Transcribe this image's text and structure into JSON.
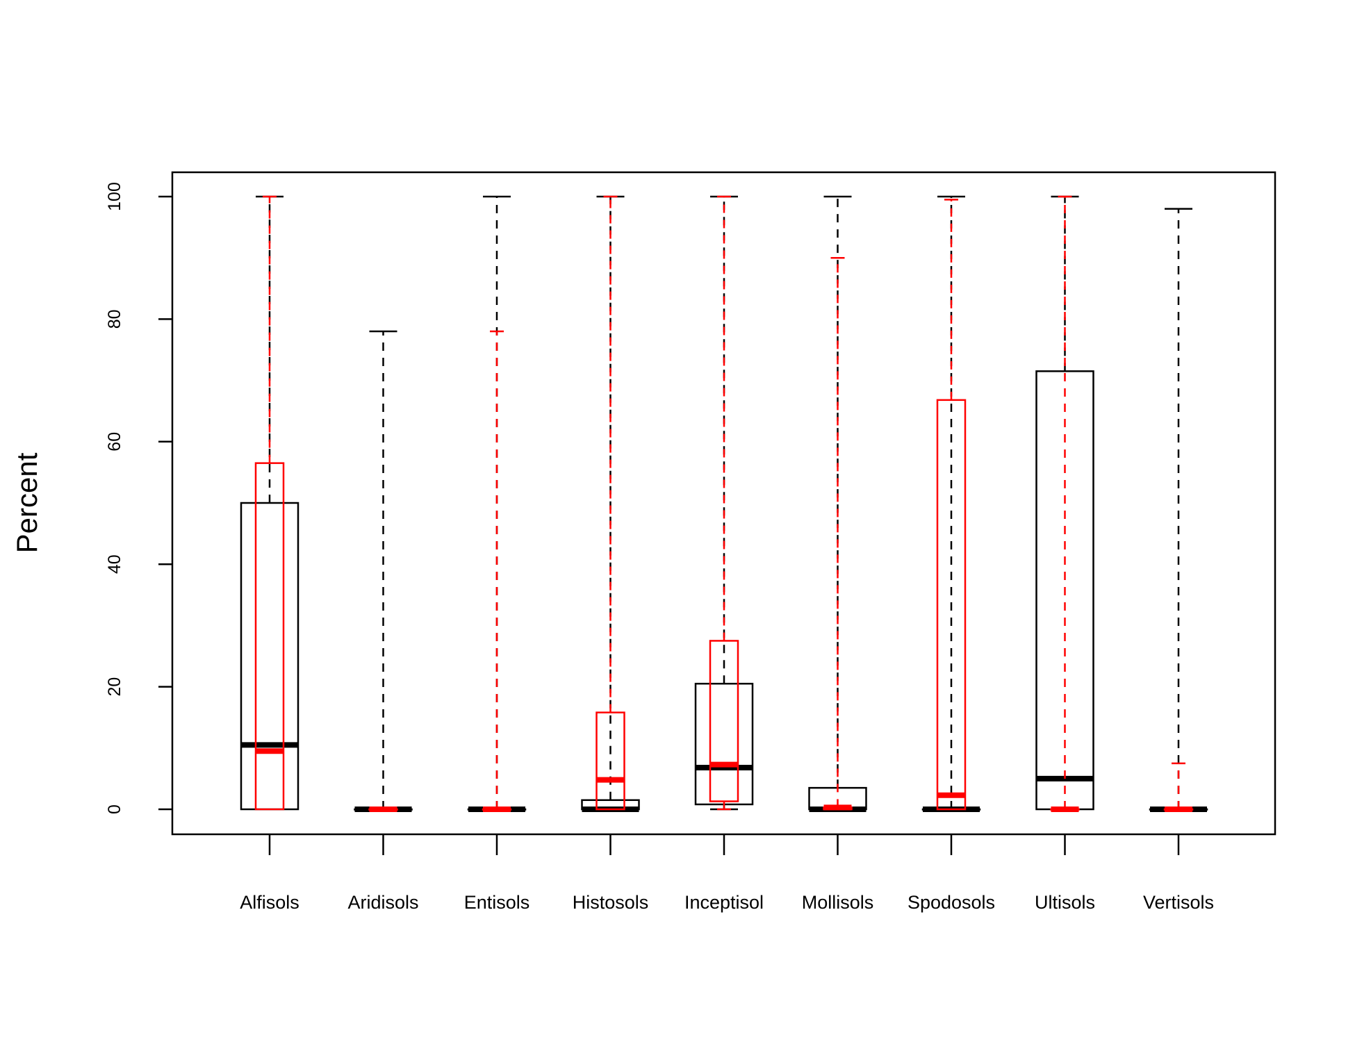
{
  "chart_data": {
    "type": "boxplot",
    "title": "",
    "xlabel": "",
    "ylabel": "Percent",
    "ylim": [
      -4,
      104
    ],
    "yticks": [
      0,
      20,
      40,
      60,
      80,
      100
    ],
    "grid": false,
    "legend": "none",
    "categories": [
      "Alfisols",
      "Aridisols",
      "Entisols",
      "Histosols",
      "Inceptisol",
      "Mollisols",
      "Spodosols",
      "Ultisols",
      "Vertisols"
    ],
    "series": [
      {
        "color": "#000000",
        "boxes": [
          {
            "min": 0,
            "q1": 0,
            "median": 10.5,
            "q3": 50,
            "max": 100
          },
          {
            "min": 0,
            "q1": 0,
            "median": 0,
            "q3": 0,
            "max": 78
          },
          {
            "min": 0,
            "q1": 0,
            "median": 0,
            "q3": 0,
            "max": 100
          },
          {
            "min": 0,
            "q1": 0,
            "median": 0,
            "q3": 1.5,
            "max": 100
          },
          {
            "min": 0,
            "q1": 0.8,
            "median": 6.8,
            "q3": 20.5,
            "max": 100
          },
          {
            "min": 0,
            "q1": 0,
            "median": 0,
            "q3": 3.5,
            "max": 100
          },
          {
            "min": 0,
            "q1": 0,
            "median": 0,
            "q3": 0,
            "max": 100
          },
          {
            "min": 0,
            "q1": 0,
            "median": 5,
            "q3": 71.5,
            "max": 100
          },
          {
            "min": 0,
            "q1": 0,
            "median": 0,
            "q3": 0,
            "max": 98
          }
        ]
      },
      {
        "color": "#ff0000",
        "boxes": [
          {
            "min": 0,
            "q1": 0,
            "median": 9.5,
            "q3": 56.5,
            "max": 100
          },
          {
            "min": 0,
            "q1": 0,
            "median": 0,
            "q3": 0,
            "max": 0
          },
          {
            "min": 0,
            "q1": 0,
            "median": 0,
            "q3": 0,
            "max": 78
          },
          {
            "min": 0,
            "q1": 0,
            "median": 4.8,
            "q3": 15.8,
            "max": 100
          },
          {
            "min": 0,
            "q1": 1.3,
            "median": 7.3,
            "q3": 27.5,
            "max": 100
          },
          {
            "min": 0,
            "q1": 0,
            "median": 0.3,
            "q3": 0.3,
            "max": 90
          },
          {
            "min": 0,
            "q1": 0,
            "median": 2.3,
            "q3": 66.8,
            "max": 99.5
          },
          {
            "min": 0,
            "q1": 0,
            "median": 0,
            "q3": 0,
            "max": 100
          },
          {
            "min": 0,
            "q1": 0,
            "median": 0,
            "q3": 0,
            "max": 7.5
          }
        ]
      }
    ]
  }
}
